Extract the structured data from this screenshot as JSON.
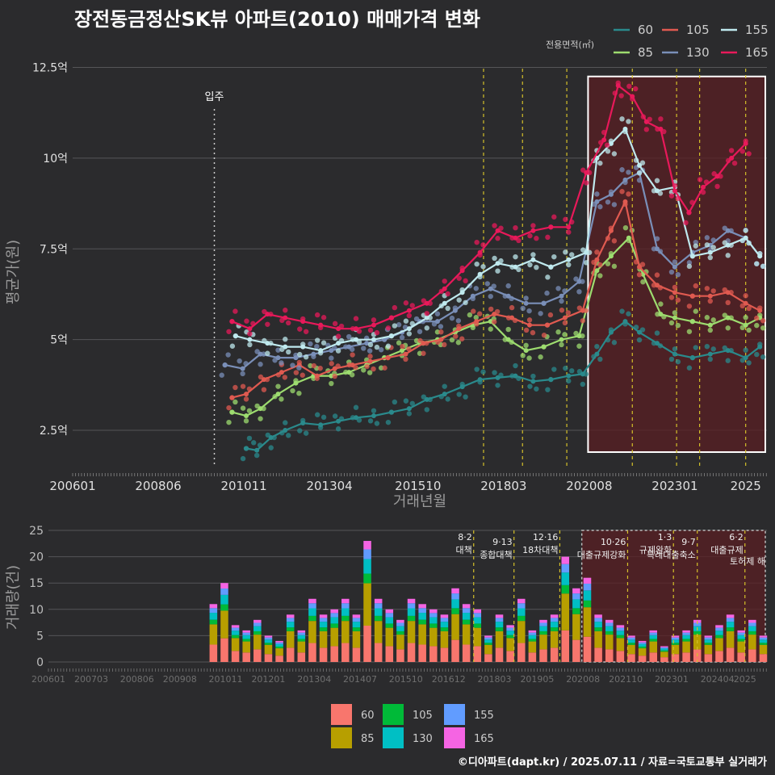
{
  "title": "장전동금정산SK뷰 아파트(2010) 매매가격 변화",
  "credit": "©디아파트(dapt.kr) / 2025.07.11 / 자료=국토교통부 실거래가",
  "colors": {
    "background": "#2b2b2d",
    "grid": "#555558",
    "shade": "#5a1f23",
    "policy_line": "#d4c02a",
    "box": "#ffffff"
  },
  "chart_data": [
    {
      "type": "line",
      "ylabel": "평균가(원)",
      "xlabel": "거래년월",
      "yticks": [
        "2.5억",
        "5억",
        "7.5억",
        "10억",
        "12.5억"
      ],
      "ytick_values": [
        2.5,
        5,
        7.5,
        10,
        12.5
      ],
      "ylim": [
        1.5,
        12.8
      ],
      "xticks": [
        "200601",
        "200806",
        "201011",
        "201304",
        "201510",
        "201803",
        "202008",
        "202301",
        "2025"
      ],
      "xlim": [
        2006.0,
        2025.6
      ],
      "legend_title": "전용면적(㎡)",
      "legend_position": "top-right",
      "annotation": {
        "label": "입주",
        "x": 2010.0
      },
      "policy_lines_x": [
        2017.6,
        2018.7,
        2019.95,
        2021.8,
        2023.05,
        2023.7,
        2025.0
      ],
      "highlight_box": {
        "x": [
          2020.55,
          2025.6
        ],
        "y": [
          1.9,
          12.25
        ]
      },
      "series": [
        {
          "name": "60",
          "color": "#2a8a8c",
          "x": [
            2010.9,
            2011.2,
            2011.6,
            2012.0,
            2012.5,
            2013.0,
            2013.5,
            2014.0,
            2014.5,
            2015.0,
            2015.5,
            2016.0,
            2016.5,
            2017.0,
            2017.5,
            2018.0,
            2018.5,
            2019.0,
            2019.5,
            2020.0,
            2020.4,
            2020.8,
            2021.2,
            2021.6,
            2022.0,
            2022.5,
            2023.0,
            2023.5,
            2024.0,
            2024.5,
            2025.0,
            2025.4
          ],
          "values": [
            2.0,
            1.95,
            2.3,
            2.5,
            2.7,
            2.65,
            2.75,
            2.85,
            2.9,
            3.0,
            3.1,
            3.35,
            3.5,
            3.7,
            3.9,
            3.95,
            4.0,
            3.85,
            3.9,
            4.0,
            4.05,
            4.6,
            5.2,
            5.5,
            5.2,
            4.9,
            4.6,
            4.5,
            4.6,
            4.7,
            4.5,
            4.8
          ]
        },
        {
          "name": "85",
          "color": "#9ddc6f",
          "x": [
            2010.5,
            2010.9,
            2011.3,
            2011.8,
            2012.3,
            2012.8,
            2013.3,
            2013.8,
            2014.3,
            2014.8,
            2015.3,
            2015.8,
            2016.3,
            2016.8,
            2017.3,
            2017.8,
            2018.3,
            2018.8,
            2019.3,
            2019.8,
            2020.3,
            2020.8,
            2021.2,
            2021.7,
            2022.1,
            2022.6,
            2023.0,
            2023.5,
            2024.0,
            2024.5,
            2025.0,
            2025.4
          ],
          "values": [
            3.0,
            2.9,
            3.1,
            3.5,
            3.8,
            4.0,
            4.0,
            4.1,
            4.3,
            4.5,
            4.7,
            4.9,
            5.0,
            5.2,
            5.4,
            5.5,
            5.0,
            4.7,
            4.8,
            5.0,
            5.1,
            6.9,
            7.3,
            7.8,
            6.8,
            5.7,
            5.6,
            5.5,
            5.4,
            5.6,
            5.4,
            5.6
          ]
        },
        {
          "name": "105",
          "color": "#e05a50",
          "x": [
            2010.5,
            2010.9,
            2011.4,
            2011.9,
            2012.4,
            2012.9,
            2013.4,
            2013.9,
            2014.4,
            2014.9,
            2015.4,
            2015.9,
            2016.4,
            2016.9,
            2017.4,
            2017.9,
            2018.4,
            2018.9,
            2019.4,
            2019.9,
            2020.4,
            2020.8,
            2021.2,
            2021.6,
            2022.0,
            2022.5,
            2023.0,
            2023.5,
            2024.0,
            2024.5,
            2025.0,
            2025.4
          ],
          "values": [
            3.4,
            3.5,
            3.9,
            4.1,
            4.3,
            4.0,
            4.2,
            4.3,
            4.4,
            4.5,
            4.6,
            4.9,
            5.0,
            5.3,
            5.5,
            5.7,
            5.6,
            5.4,
            5.4,
            5.6,
            5.8,
            7.2,
            8.0,
            8.8,
            7.0,
            6.5,
            6.3,
            6.2,
            6.2,
            6.3,
            6.0,
            5.8
          ]
        },
        {
          "name": "130",
          "color": "#7a8fb8",
          "x": [
            2010.3,
            2010.8,
            2011.3,
            2011.8,
            2012.3,
            2012.8,
            2013.3,
            2013.8,
            2014.3,
            2014.8,
            2015.3,
            2015.8,
            2016.3,
            2016.8,
            2017.3,
            2017.8,
            2018.3,
            2018.8,
            2019.3,
            2019.8,
            2020.3,
            2020.8,
            2021.2,
            2021.6,
            2022.0,
            2022.5,
            2023.0,
            2023.5,
            2024.0,
            2024.5,
            2025.0,
            2025.4
          ],
          "values": [
            4.3,
            4.2,
            4.6,
            4.5,
            4.5,
            4.6,
            4.7,
            4.8,
            4.9,
            5.0,
            5.2,
            5.5,
            5.5,
            5.8,
            6.2,
            6.4,
            6.2,
            6.0,
            6.0,
            6.2,
            6.6,
            8.8,
            9.0,
            9.4,
            9.6,
            7.5,
            7.0,
            7.4,
            7.6,
            8.0,
            7.8,
            7.3
          ]
        },
        {
          "name": "155",
          "color": "#bfe9ee",
          "x": [
            2010.6,
            2011.0,
            2011.5,
            2012.0,
            2012.5,
            2013.0,
            2013.5,
            2014.0,
            2014.5,
            2015.0,
            2015.5,
            2016.0,
            2016.5,
            2017.0,
            2017.5,
            2018.0,
            2018.5,
            2019.0,
            2019.5,
            2020.0,
            2020.5,
            2020.8,
            2021.2,
            2021.6,
            2022.0,
            2022.5,
            2023.0,
            2023.5,
            2024.0,
            2024.5,
            2025.0,
            2025.4
          ],
          "values": [
            5.1,
            5.0,
            4.9,
            4.8,
            4.8,
            4.7,
            4.9,
            5.0,
            5.0,
            5.1,
            5.3,
            5.6,
            6.0,
            6.3,
            6.8,
            7.1,
            7.0,
            7.2,
            7.0,
            7.2,
            7.4,
            10.0,
            10.4,
            10.8,
            9.8,
            9.1,
            9.2,
            7.3,
            7.4,
            7.6,
            7.8,
            7.3
          ]
        },
        {
          "name": "165",
          "color": "#e8195a",
          "x": [
            2010.5,
            2011.0,
            2011.5,
            2012.0,
            2012.5,
            2013.0,
            2013.5,
            2014.0,
            2014.5,
            2015.0,
            2015.5,
            2016.0,
            2016.5,
            2017.0,
            2017.5,
            2018.0,
            2018.5,
            2019.0,
            2019.5,
            2020.0,
            2020.5,
            2021.0,
            2021.4,
            2021.8,
            2022.2,
            2022.6,
            2023.0,
            2023.4,
            2023.8,
            2024.2,
            2024.6,
            2025.0
          ],
          "values": [
            5.5,
            5.3,
            5.7,
            5.6,
            5.5,
            5.4,
            5.3,
            5.3,
            5.4,
            5.6,
            5.8,
            6.0,
            6.4,
            6.9,
            7.4,
            8.0,
            7.8,
            8.0,
            8.1,
            8.1,
            9.6,
            10.5,
            12.0,
            11.7,
            11.0,
            10.8,
            9.1,
            8.5,
            9.2,
            9.5,
            10.0,
            10.4
          ]
        }
      ]
    },
    {
      "type": "bar",
      "ylabel": "거래량(건)",
      "yticks": [
        "0",
        "5",
        "10",
        "15",
        "20",
        "25"
      ],
      "ytick_values": [
        0,
        5,
        10,
        15,
        20,
        25
      ],
      "ylim": [
        0,
        25
      ],
      "xticks": [
        "200601",
        "200703",
        "200806",
        "200908",
        "201011",
        "201201",
        "201304",
        "201407",
        "201510",
        "201612",
        "201803",
        "201905",
        "202008",
        "202110",
        "202301",
        "202404",
        "2025"
      ],
      "xlim": [
        2006.0,
        2025.6
      ],
      "policy_lines": [
        {
          "x": 2017.6,
          "label": "8·2 대책"
        },
        {
          "x": 2018.7,
          "label": "9·13 종합대책"
        },
        {
          "x": 2019.95,
          "label": "12·16 18차대책"
        },
        {
          "x": 2021.8,
          "label": "10·26 대출규제강화"
        },
        {
          "x": 2023.05,
          "label": "1·3 규제완화"
        },
        {
          "x": 2023.7,
          "label": "9·7 특례대출축소"
        },
        {
          "x": 2025.0,
          "label": "6·2 대출규제"
        }
      ],
      "policy_note": "토허제 해",
      "highlight_box": {
        "x": [
          2020.55,
          2025.6
        ]
      },
      "totals_x": [
        2010.5,
        2010.8,
        2011.1,
        2011.4,
        2011.7,
        2012.0,
        2012.3,
        2012.6,
        2012.9,
        2013.2,
        2013.5,
        2013.8,
        2014.1,
        2014.4,
        2014.7,
        2015.0,
        2015.3,
        2015.6,
        2015.9,
        2016.2,
        2016.5,
        2016.8,
        2017.1,
        2017.4,
        2017.7,
        2018.0,
        2018.3,
        2018.6,
        2018.9,
        2019.2,
        2019.5,
        2019.8,
        2020.1,
        2020.4,
        2020.7,
        2021.0,
        2021.3,
        2021.6,
        2021.9,
        2022.2,
        2022.5,
        2022.8,
        2023.1,
        2023.4,
        2023.7,
        2024.0,
        2024.3,
        2024.6,
        2024.9,
        2025.2,
        2025.5
      ],
      "totals": [
        11,
        15,
        7,
        6,
        8,
        5,
        4,
        9,
        6,
        12,
        9,
        10,
        12,
        9,
        23,
        12,
        10,
        8,
        12,
        11,
        10,
        9,
        14,
        11,
        10,
        5,
        9,
        7,
        12,
        6,
        8,
        9,
        20,
        14,
        16,
        9,
        8,
        7,
        5,
        4,
        6,
        3,
        5,
        6,
        8,
        5,
        7,
        9,
        6,
        8,
        5
      ],
      "series_colors": {
        "60": "#f8766d",
        "85": "#b79f00",
        "105": "#00ba38",
        "130": "#00bfc4",
        "155": "#619cff",
        "165": "#f564e3"
      },
      "legend_position": "bottom",
      "legend": [
        "60",
        "85",
        "105",
        "130",
        "155",
        "165"
      ]
    }
  ]
}
